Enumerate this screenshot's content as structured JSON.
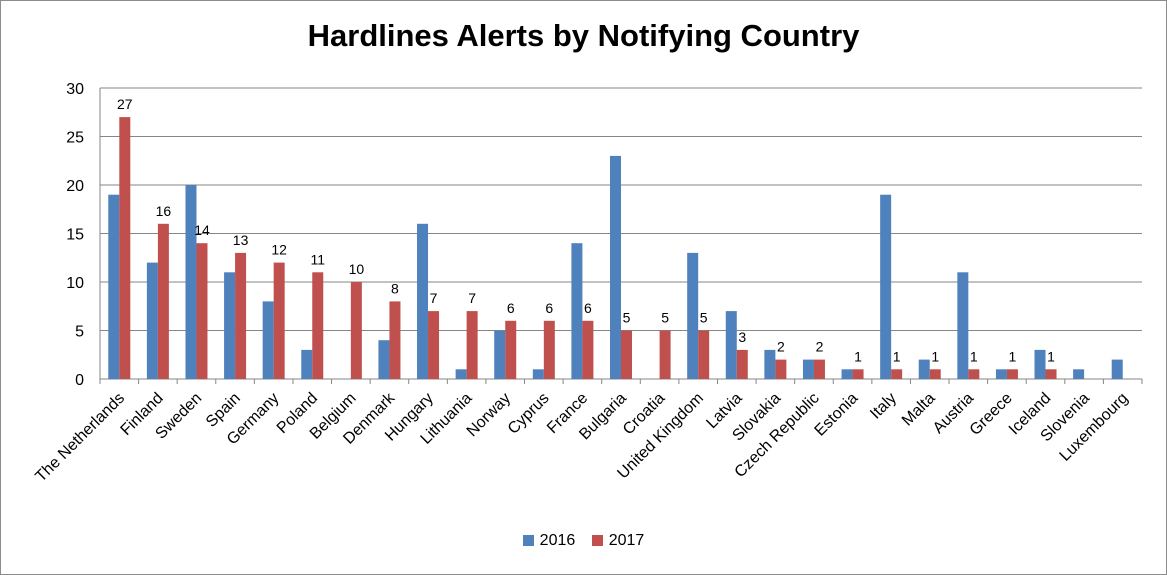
{
  "chart_data": {
    "type": "bar",
    "title": "Hardlines Alerts by Notifying Country",
    "xlabel": "",
    "ylabel": "",
    "ylim": [
      0,
      30
    ],
    "yticks": [
      0,
      5,
      10,
      15,
      20,
      25,
      30
    ],
    "grid": true,
    "legend_position": "bottom",
    "categories": [
      "The Netherlands",
      "Finland",
      "Sweden",
      "Spain",
      "Germany",
      "Poland",
      "Belgium",
      "Denmark",
      "Hungary",
      "Lithuania",
      "Norway",
      "Cyprus",
      "France",
      "Bulgaria",
      "Croatia",
      "United Kingdom",
      "Latvia",
      "Slovakia",
      "Czech Republic",
      "Estonia",
      "Italy",
      "Malta",
      "Austria",
      "Greece",
      "Iceland",
      "Slovenia",
      "Luxembourg"
    ],
    "series": [
      {
        "name": "2016",
        "color": "#4f81bd",
        "values": [
          19,
          12,
          20,
          11,
          8,
          3,
          0,
          4,
          16,
          1,
          5,
          1,
          14,
          23,
          0,
          13,
          7,
          3,
          2,
          1,
          19,
          2,
          11,
          1,
          3,
          1,
          2
        ]
      },
      {
        "name": "2017",
        "color": "#c0504d",
        "values": [
          27,
          16,
          14,
          13,
          12,
          11,
          10,
          8,
          7,
          7,
          6,
          6,
          6,
          5,
          5,
          5,
          3,
          2,
          2,
          1,
          1,
          1,
          1,
          1,
          1,
          0,
          0
        ]
      }
    ],
    "data_labels": [
      "27",
      "16",
      "14",
      "13",
      "12",
      "11",
      "10",
      "8",
      "7",
      "7",
      "6",
      "6",
      "6",
      "5",
      "5",
      "5",
      "3",
      "2",
      "2",
      "1",
      "1",
      "1",
      "1",
      "1",
      "1",
      "",
      ""
    ]
  }
}
